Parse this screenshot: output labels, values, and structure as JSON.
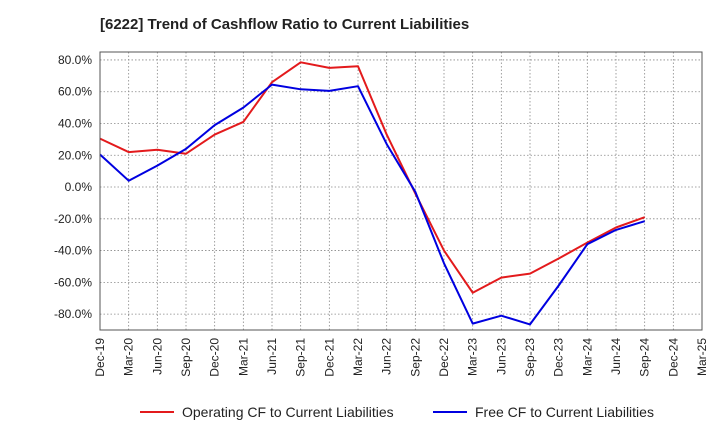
{
  "chart_data": {
    "type": "line",
    "title": "[6222]  Trend of Cashflow Ratio to Current Liabilities",
    "xlabel": "",
    "ylabel": "",
    "x": [
      "Dec-19",
      "Mar-20",
      "Jun-20",
      "Sep-20",
      "Dec-20",
      "Mar-21",
      "Jun-21",
      "Sep-21",
      "Dec-21",
      "Mar-22",
      "Jun-22",
      "Sep-22",
      "Dec-22",
      "Mar-23",
      "Jun-23",
      "Sep-23",
      "Dec-23",
      "Mar-24",
      "Jun-24",
      "Sep-24",
      "Dec-24",
      "Mar-25"
    ],
    "yticks": [
      "80.0%",
      "60.0%",
      "40.0%",
      "20.0%",
      "0.0%",
      "-20.0%",
      "-40.0%",
      "-60.0%",
      "-80.0%"
    ],
    "ylim": [
      -90,
      85
    ],
    "grid": true,
    "legend_position": "bottom",
    "series": [
      {
        "name": "Operating CF to Current Liabilities",
        "color": "#e31a1c",
        "values": [
          30.5,
          22.0,
          23.5,
          21.0,
          33.0,
          41.0,
          66.0,
          78.5,
          75.0,
          76.0,
          33.0,
          -4.0,
          -40.0,
          -66.5,
          -57.0,
          -54.5,
          -45.0,
          -35.0,
          -25.5,
          -19.0,
          null,
          null
        ]
      },
      {
        "name": "Free CF to Current Liabilities",
        "color": "#0000e0",
        "values": [
          20.5,
          4.0,
          13.5,
          24.0,
          39.0,
          50.0,
          64.5,
          61.5,
          60.5,
          63.5,
          27.0,
          -3.0,
          -48.0,
          -86.0,
          -81.0,
          -86.5,
          -62.0,
          -36.0,
          -27.0,
          -21.5,
          null,
          null
        ]
      }
    ]
  }
}
